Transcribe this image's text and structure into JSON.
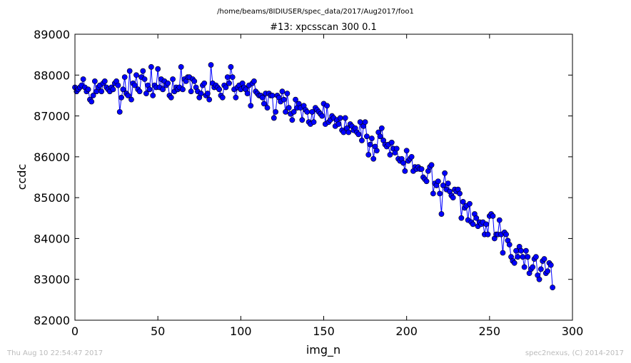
{
  "suptitle": "/home/beams/8IDIUSER/spec_data/2017/Aug2017/foo1",
  "footer": {
    "left": "Thu Aug 10 22:54:47 2017",
    "right": "spec2nexus, (C) 2014-2017"
  },
  "colors": {
    "series": "#0000ff",
    "axes": "#000000",
    "background": "#ffffff"
  },
  "chart_data": {
    "type": "line",
    "title": "#13: xpcsscan 300 0.1",
    "xlabel": "img_n",
    "ylabel": "ccdc",
    "xlim": [
      0,
      300
    ],
    "ylim": [
      82000,
      89000
    ],
    "xticks": [
      0,
      50,
      100,
      150,
      200,
      250,
      300
    ],
    "yticks": [
      82000,
      83000,
      84000,
      85000,
      86000,
      87000,
      88000,
      89000
    ],
    "grid": false,
    "marker": "circle",
    "series": [
      {
        "values": [
          87700,
          87600,
          87650,
          87700,
          87750,
          87900,
          87700,
          87600,
          87650,
          87400,
          87350,
          87500,
          87850,
          87600,
          87700,
          87750,
          87600,
          87800,
          87850,
          87700,
          87650,
          87600,
          87700,
          87650,
          87800,
          87850,
          87750,
          87100,
          87450,
          87650,
          87950,
          87550,
          87500,
          88100,
          87400,
          87800,
          87750,
          88000,
          87650,
          87600,
          87950,
          88100,
          87900,
          87550,
          87750,
          87650,
          88200,
          87500,
          87750,
          87700,
          88150,
          87700,
          87900,
          87650,
          87850,
          87750,
          87800,
          87500,
          87450,
          87900,
          87600,
          87700,
          87650,
          87700,
          88200,
          87650,
          87900,
          87850,
          87950,
          87950,
          87600,
          87900,
          87850,
          87700,
          87600,
          87450,
          87550,
          87750,
          87800,
          87500,
          87550,
          87400,
          88250,
          87800,
          87700,
          87750,
          87700,
          87650,
          87500,
          87450,
          87750,
          87700,
          87950,
          87800,
          88200,
          87950,
          87650,
          87450,
          87700,
          87750,
          87650,
          87800,
          87700,
          87650,
          87550,
          87750,
          87250,
          87800,
          87850,
          87600,
          87550,
          87500,
          87500,
          87450,
          87300,
          87550,
          87200,
          87550,
          87500,
          87500,
          86950,
          87100,
          87500,
          87450,
          87350,
          87600,
          87400,
          87100,
          87550,
          87200,
          87050,
          86900,
          87100,
          87400,
          87200,
          87300,
          87200,
          86900,
          87250,
          87150,
          87100,
          86850,
          86800,
          87100,
          86850,
          87200,
          87150,
          87100,
          87050,
          87000,
          87300,
          86800,
          87250,
          86850,
          86900,
          87000,
          86950,
          86750,
          86900,
          86800,
          86950,
          86650,
          86600,
          86950,
          86700,
          86600,
          86800,
          86750,
          86650,
          86700,
          86600,
          86550,
          86850,
          86400,
          86750,
          86850,
          86500,
          86050,
          86300,
          86450,
          85950,
          86250,
          86150,
          86600,
          86500,
          86700,
          86400,
          86300,
          86250,
          86300,
          86050,
          86350,
          86200,
          86100,
          86200,
          85950,
          85900,
          85950,
          85850,
          85650,
          86150,
          85900,
          85950,
          86000,
          85650,
          85750,
          85700,
          85750,
          85700,
          85700,
          85500,
          85450,
          85400,
          85650,
          85750,
          85800,
          85100,
          85350,
          85300,
          85400,
          85100,
          84600,
          85300,
          85600,
          85200,
          85350,
          85150,
          85050,
          85000,
          85200,
          85150,
          85200,
          85100,
          84500,
          84900,
          84750,
          84800,
          84450,
          84850,
          84400,
          84350,
          84600,
          84500,
          84300,
          84400,
          84350,
          84400,
          84100,
          84350,
          84100,
          84550,
          84600,
          84550,
          84000,
          84100,
          84100,
          84450,
          84100,
          83650,
          84150,
          84100,
          83950,
          83850,
          83550,
          83450,
          83400,
          83700,
          83550,
          83800,
          83700,
          83550,
          83300,
          83700,
          83550,
          83150,
          83250,
          83300,
          83500,
          83550,
          83100,
          83000,
          83250,
          83450,
          83500,
          83150,
          83200,
          83400,
          83350,
          82800
        ]
      }
    ]
  }
}
